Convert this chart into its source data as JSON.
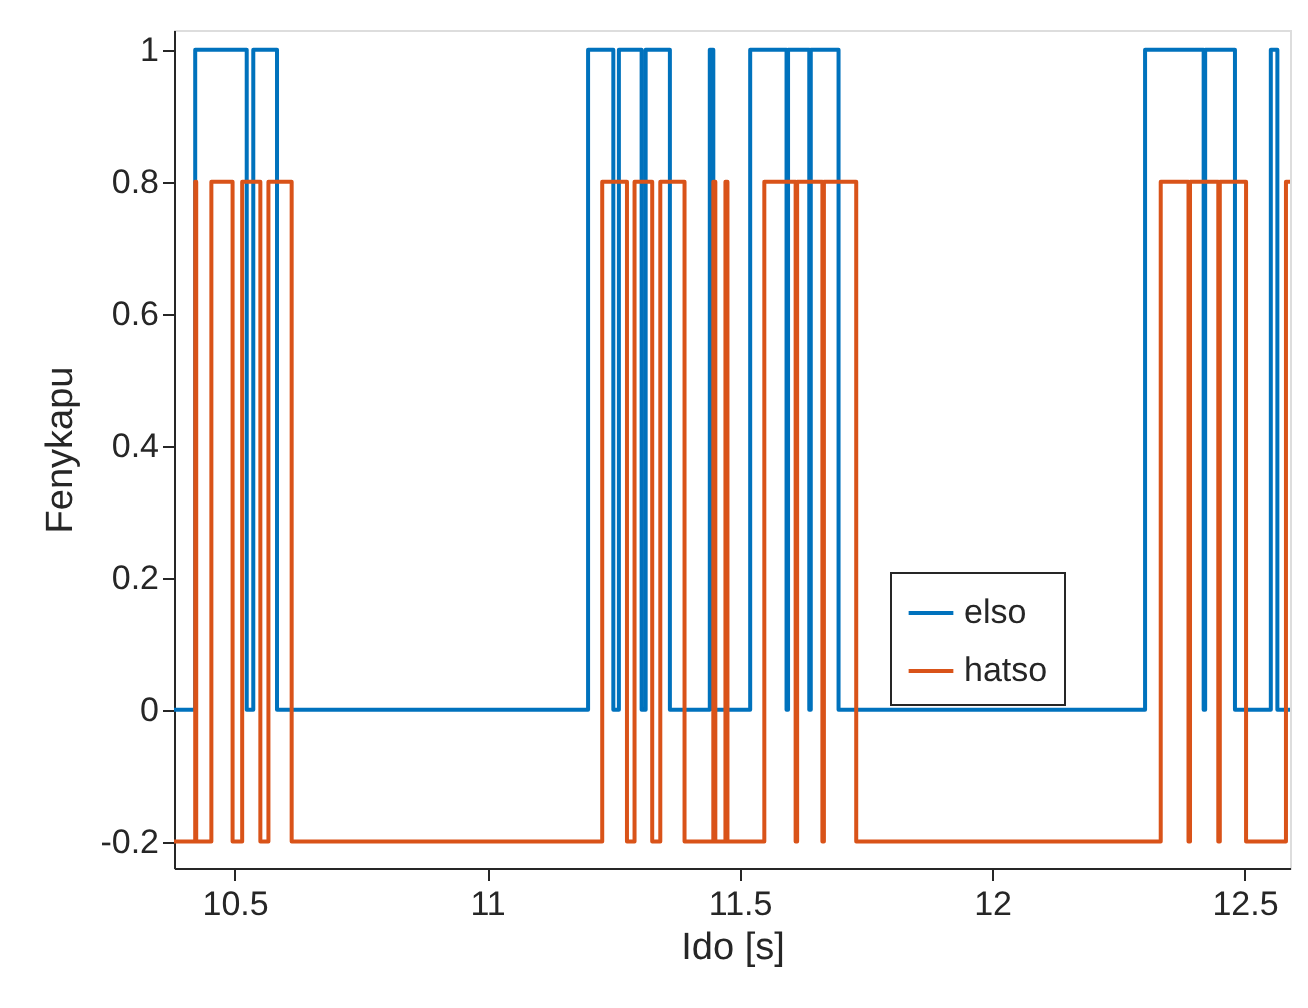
{
  "chart_data": {
    "type": "step",
    "xlabel": "Ido [s]",
    "ylabel": "Fenykapu",
    "xlim": [
      10.38,
      12.59
    ],
    "ylim": [
      -0.24,
      1.03
    ],
    "xticks": [
      10.5,
      11,
      11.5,
      12,
      12.5
    ],
    "yticks": [
      -0.2,
      0,
      0.2,
      0.4,
      0.6,
      0.8,
      1
    ],
    "grid": false,
    "legend": "bottom right",
    "line_style": "solid",
    "marker": "none",
    "series": [
      {
        "name": "elso",
        "color": "#0072bd",
        "x": [
          10.38,
          10.422,
          10.524,
          10.537,
          10.584,
          11.2,
          11.25,
          11.261,
          11.306,
          11.314,
          11.362,
          11.441,
          11.448,
          11.521,
          11.593,
          11.596,
          11.638,
          11.641,
          11.696,
          12.303,
          12.419,
          12.422,
          12.481,
          12.552,
          12.565,
          12.59
        ],
        "values": [
          0,
          1,
          0,
          1,
          0,
          1,
          0,
          1,
          0,
          1,
          0,
          1,
          0,
          1,
          0,
          1,
          0,
          1,
          0,
          1,
          0,
          1,
          0,
          1,
          0,
          0
        ]
      },
      {
        "name": "hatso",
        "color": "#d95319",
        "x": [
          10.38,
          10.422,
          10.424,
          10.454,
          10.496,
          10.515,
          10.551,
          10.567,
          10.613,
          11.228,
          11.277,
          11.292,
          11.327,
          11.343,
          11.391,
          11.448,
          11.452,
          11.472,
          11.476,
          11.549,
          11.611,
          11.614,
          11.664,
          11.667,
          11.731,
          12.334,
          12.389,
          12.392,
          12.448,
          12.451,
          12.503,
          12.582,
          12.59
        ],
        "values": [
          -0.2,
          0.8,
          -0.2,
          0.8,
          -0.2,
          0.8,
          -0.2,
          0.8,
          -0.2,
          0.8,
          -0.2,
          0.8,
          -0.2,
          0.8,
          -0.2,
          0.8,
          -0.2,
          0.8,
          -0.2,
          0.8,
          -0.2,
          0.8,
          -0.2,
          0.8,
          -0.2,
          0.8,
          -0.2,
          0.8,
          -0.2,
          0.8,
          -0.2,
          0.8,
          0.8
        ]
      }
    ]
  }
}
